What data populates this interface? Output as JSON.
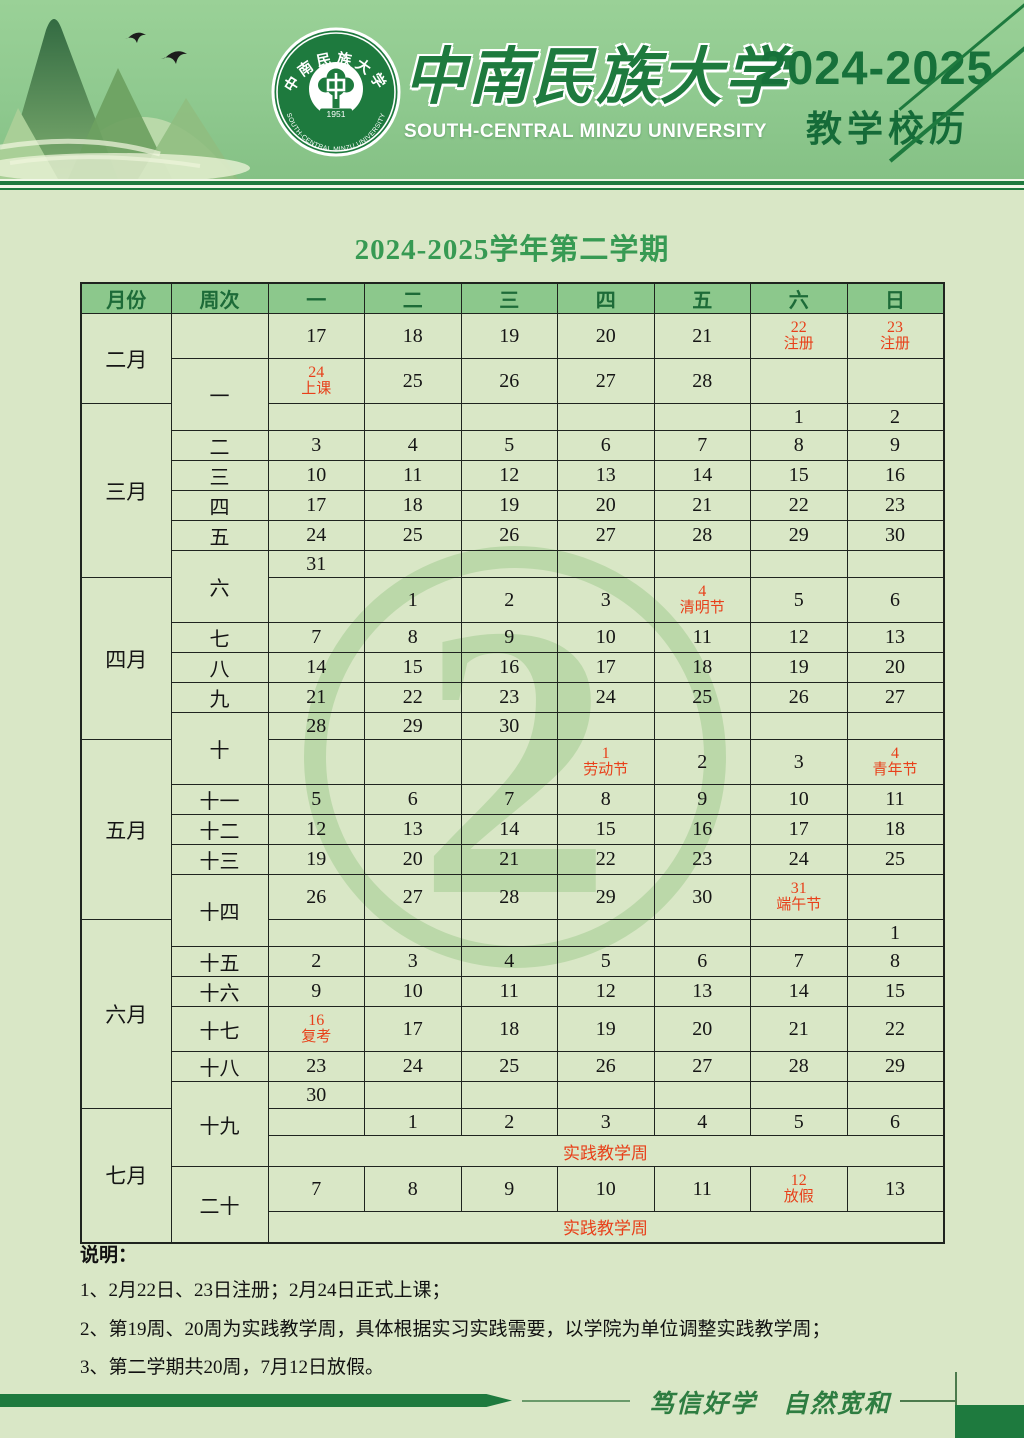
{
  "header": {
    "university_cn": "中南民族大学",
    "university_en": "SOUTH-CENTRAL MINZU UNIVERSITY",
    "years": "2024-2025",
    "subtitle": "教学校历",
    "logo_ring_cn": "中南民族大学",
    "logo_year": "1951"
  },
  "title": "2024-2025学年第二学期",
  "watermark": {
    "glyph": "2"
  },
  "colors": {
    "accent_dark": "#1e7a3e",
    "masthead_green": "#8fc98f",
    "page_bg": "#d9e7c6",
    "table_header_bg": "#8cc88c",
    "table_header_text": "#1d6b38",
    "holiday_red": "#e8401a",
    "title_green": "#379a53",
    "watermark_green": "#a4cd92"
  },
  "table": {
    "headers": [
      "月份",
      "周次",
      "一",
      "二",
      "三",
      "四",
      "五",
      "六",
      "日"
    ],
    "rows": [
      {
        "month": {
          "label": "二月",
          "rowspan": 2
        },
        "week": {
          "label": "",
          "rowspan": 1
        },
        "days": [
          {
            "d": "17"
          },
          {
            "d": "18"
          },
          {
            "d": "19"
          },
          {
            "d": "20"
          },
          {
            "d": "21"
          },
          {
            "d": "22",
            "n": "注册"
          },
          {
            "d": "23",
            "n": "注册"
          }
        ]
      },
      {
        "week": {
          "label": "一",
          "rowspan": 2
        },
        "days": [
          {
            "d": "24",
            "n": "上课"
          },
          {
            "d": "25"
          },
          {
            "d": "26"
          },
          {
            "d": "27"
          },
          {
            "d": "28"
          },
          {},
          {}
        ]
      },
      {
        "month": {
          "label": "三月",
          "rowspan": 6
        },
        "days": [
          {},
          {},
          {},
          {},
          {},
          {
            "d": "1"
          },
          {
            "d": "2"
          }
        ]
      },
      {
        "week": {
          "label": "二",
          "rowspan": 1
        },
        "days": [
          {
            "d": "3"
          },
          {
            "d": "4"
          },
          {
            "d": "5"
          },
          {
            "d": "6"
          },
          {
            "d": "7"
          },
          {
            "d": "8"
          },
          {
            "d": "9"
          }
        ]
      },
      {
        "week": {
          "label": "三",
          "rowspan": 1
        },
        "days": [
          {
            "d": "10"
          },
          {
            "d": "11"
          },
          {
            "d": "12"
          },
          {
            "d": "13"
          },
          {
            "d": "14"
          },
          {
            "d": "15"
          },
          {
            "d": "16"
          }
        ]
      },
      {
        "week": {
          "label": "四",
          "rowspan": 1
        },
        "days": [
          {
            "d": "17"
          },
          {
            "d": "18"
          },
          {
            "d": "19"
          },
          {
            "d": "20"
          },
          {
            "d": "21"
          },
          {
            "d": "22"
          },
          {
            "d": "23"
          }
        ]
      },
      {
        "week": {
          "label": "五",
          "rowspan": 1
        },
        "days": [
          {
            "d": "24"
          },
          {
            "d": "25"
          },
          {
            "d": "26"
          },
          {
            "d": "27"
          },
          {
            "d": "28"
          },
          {
            "d": "29"
          },
          {
            "d": "30"
          }
        ]
      },
      {
        "week": {
          "label": "六",
          "rowspan": 2
        },
        "days": [
          {
            "d": "31"
          },
          {},
          {},
          {},
          {},
          {},
          {}
        ]
      },
      {
        "month": {
          "label": "四月",
          "rowspan": 5
        },
        "days": [
          {},
          {
            "d": "1"
          },
          {
            "d": "2"
          },
          {
            "d": "3"
          },
          {
            "d": "4",
            "n": "清明节"
          },
          {
            "d": "5"
          },
          {
            "d": "6"
          }
        ]
      },
      {
        "week": {
          "label": "七",
          "rowspan": 1
        },
        "days": [
          {
            "d": "7"
          },
          {
            "d": "8"
          },
          {
            "d": "9"
          },
          {
            "d": "10"
          },
          {
            "d": "11"
          },
          {
            "d": "12"
          },
          {
            "d": "13"
          }
        ]
      },
      {
        "week": {
          "label": "八",
          "rowspan": 1
        },
        "days": [
          {
            "d": "14"
          },
          {
            "d": "15"
          },
          {
            "d": "16"
          },
          {
            "d": "17"
          },
          {
            "d": "18"
          },
          {
            "d": "19"
          },
          {
            "d": "20"
          }
        ]
      },
      {
        "week": {
          "label": "九",
          "rowspan": 1
        },
        "days": [
          {
            "d": "21"
          },
          {
            "d": "22"
          },
          {
            "d": "23"
          },
          {
            "d": "24"
          },
          {
            "d": "25"
          },
          {
            "d": "26"
          },
          {
            "d": "27"
          }
        ]
      },
      {
        "week": {
          "label": "十",
          "rowspan": 2
        },
        "days": [
          {
            "d": "28"
          },
          {
            "d": "29"
          },
          {
            "d": "30"
          },
          {},
          {},
          {},
          {}
        ]
      },
      {
        "month": {
          "label": "五月",
          "rowspan": 5
        },
        "days": [
          {},
          {},
          {},
          {
            "d": "1",
            "n": "劳动节"
          },
          {
            "d": "2"
          },
          {
            "d": "3"
          },
          {
            "d": "4",
            "n": "青年节"
          }
        ]
      },
      {
        "week": {
          "label": "十一",
          "rowspan": 1
        },
        "days": [
          {
            "d": "5"
          },
          {
            "d": "6"
          },
          {
            "d": "7"
          },
          {
            "d": "8"
          },
          {
            "d": "9"
          },
          {
            "d": "10"
          },
          {
            "d": "11"
          }
        ]
      },
      {
        "week": {
          "label": "十二",
          "rowspan": 1
        },
        "days": [
          {
            "d": "12"
          },
          {
            "d": "13"
          },
          {
            "d": "14"
          },
          {
            "d": "15"
          },
          {
            "d": "16"
          },
          {
            "d": "17"
          },
          {
            "d": "18"
          }
        ]
      },
      {
        "week": {
          "label": "十三",
          "rowspan": 1
        },
        "days": [
          {
            "d": "19"
          },
          {
            "d": "20"
          },
          {
            "d": "21"
          },
          {
            "d": "22"
          },
          {
            "d": "23"
          },
          {
            "d": "24"
          },
          {
            "d": "25"
          }
        ]
      },
      {
        "week": {
          "label": "十四",
          "rowspan": 2
        },
        "days": [
          {
            "d": "26"
          },
          {
            "d": "27"
          },
          {
            "d": "28"
          },
          {
            "d": "29"
          },
          {
            "d": "30"
          },
          {
            "d": "31",
            "n": "端午节"
          },
          {}
        ]
      },
      {
        "month": {
          "label": "六月",
          "rowspan": 6
        },
        "days": [
          {},
          {},
          {},
          {},
          {},
          {},
          {
            "d": "1"
          }
        ]
      },
      {
        "week": {
          "label": "十五",
          "rowspan": 1
        },
        "days": [
          {
            "d": "2"
          },
          {
            "d": "3"
          },
          {
            "d": "4"
          },
          {
            "d": "5"
          },
          {
            "d": "6"
          },
          {
            "d": "7"
          },
          {
            "d": "8"
          }
        ]
      },
      {
        "week": {
          "label": "十六",
          "rowspan": 1
        },
        "days": [
          {
            "d": "9"
          },
          {
            "d": "10"
          },
          {
            "d": "11"
          },
          {
            "d": "12"
          },
          {
            "d": "13"
          },
          {
            "d": "14"
          },
          {
            "d": "15"
          }
        ]
      },
      {
        "week": {
          "label": "十七",
          "rowspan": 1
        },
        "days": [
          {
            "d": "16",
            "n": "复考"
          },
          {
            "d": "17"
          },
          {
            "d": "18"
          },
          {
            "d": "19"
          },
          {
            "d": "20"
          },
          {
            "d": "21"
          },
          {
            "d": "22"
          }
        ]
      },
      {
        "week": {
          "label": "十八",
          "rowspan": 1
        },
        "days": [
          {
            "d": "23"
          },
          {
            "d": "24"
          },
          {
            "d": "25"
          },
          {
            "d": "26"
          },
          {
            "d": "27"
          },
          {
            "d": "28"
          },
          {
            "d": "29"
          }
        ]
      },
      {
        "week": {
          "label": "十九",
          "rowspan": 3
        },
        "days": [
          {
            "d": "30"
          },
          {},
          {},
          {},
          {},
          {},
          {}
        ]
      },
      {
        "month": {
          "label": "七月",
          "rowspan": 4
        },
        "days": [
          {},
          {
            "d": "1"
          },
          {
            "d": "2"
          },
          {
            "d": "3"
          },
          {
            "d": "4"
          },
          {
            "d": "5"
          },
          {
            "d": "6"
          }
        ]
      },
      {
        "banner": "实践教学周"
      },
      {
        "week": {
          "label": "二十",
          "rowspan": 2
        },
        "days": [
          {
            "d": "7"
          },
          {
            "d": "8"
          },
          {
            "d": "9"
          },
          {
            "d": "10"
          },
          {
            "d": "11"
          },
          {
            "d": "12",
            "n": "放假"
          },
          {
            "d": "13"
          }
        ]
      },
      {
        "banner": "实践教学周"
      }
    ]
  },
  "notes": {
    "label": "说明：",
    "items": [
      "1、2月22日、23日注册；2月24日正式上课；",
      "2、第19周、20周为实践教学周，具体根据实习实践需要，以学院为单位调整实践教学周；",
      "3、第二学期共20周，7月12日放假。"
    ]
  },
  "footer": {
    "motto_left": "笃信好学",
    "motto_right": "自然宽和"
  }
}
